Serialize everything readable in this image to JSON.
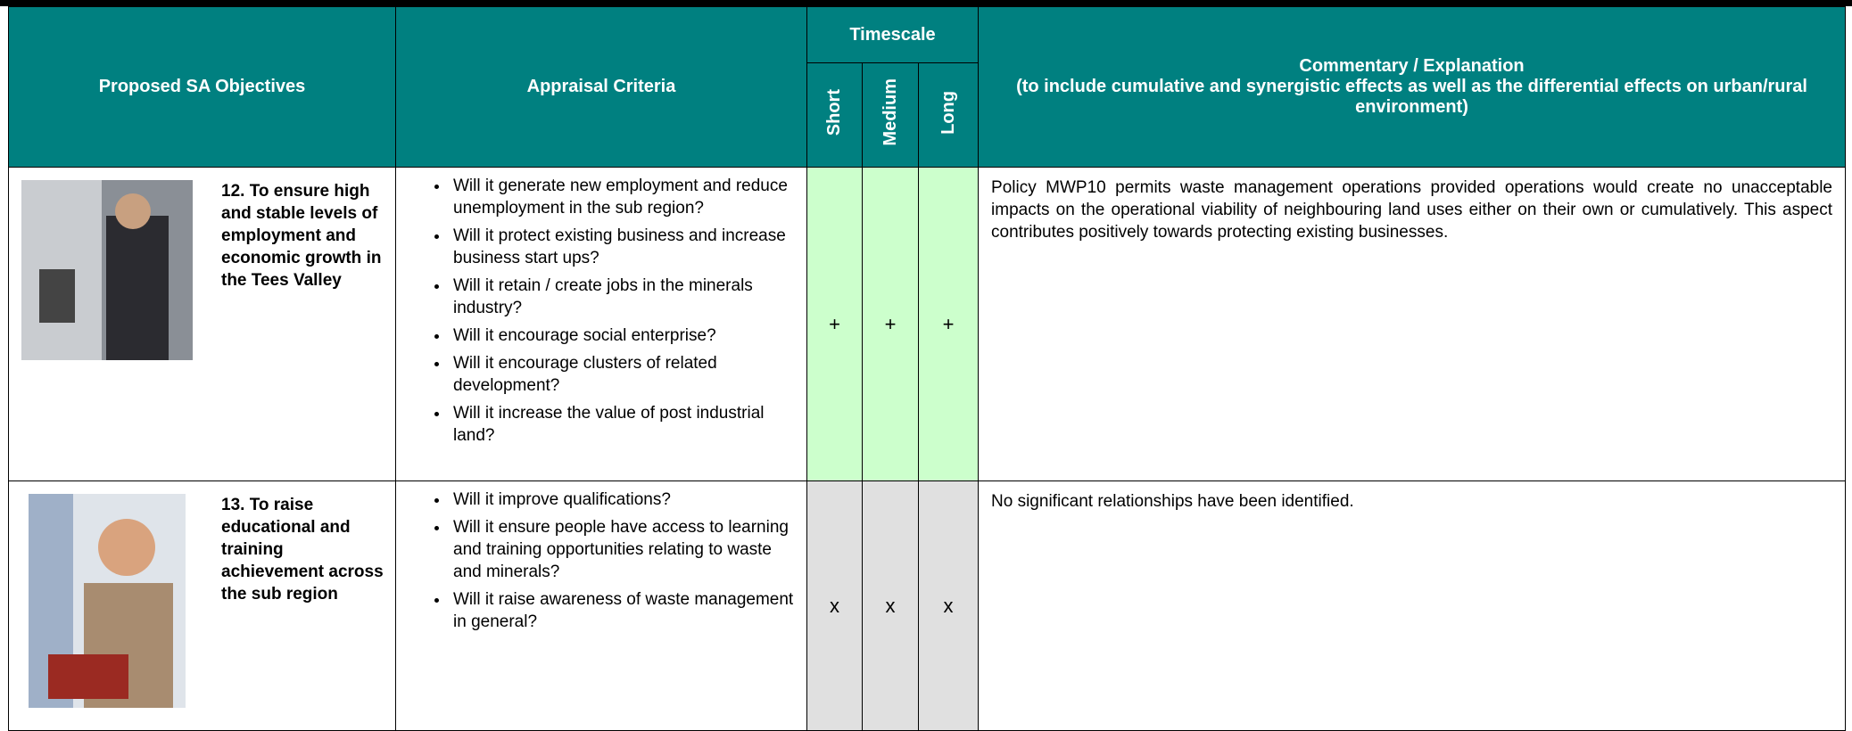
{
  "header": {
    "objectives": "Proposed SA Objectives",
    "criteria": "Appraisal Criteria",
    "timescale": "Timescale",
    "short": "Short",
    "medium": "Medium",
    "long": "Long",
    "commentary_title": "Commentary / Explanation",
    "commentary_note": "(to include cumulative and synergistic effects as well as the differential effects on urban/rural environment)"
  },
  "rows": [
    {
      "objective": "12. To ensure high and stable levels of employment and economic growth in the Tees Valley",
      "criteria": [
        "Will it generate new employment and reduce unemployment in the sub region?",
        "Will it protect existing business and increase business start ups?",
        "Will it retain / create jobs in the minerals industry?",
        "Will it encourage social enterprise?",
        "Will it encourage clusters of related development?",
        "Will it increase the value of post industrial land?"
      ],
      "scores": [
        "+",
        "+",
        "+"
      ],
      "commentary": "Policy MWP10 permits waste management operations provided operations would create no unacceptable impacts on the operational viability of neighbouring land uses either on their own or cumulatively. This aspect contributes positively towards protecting existing businesses."
    },
    {
      "objective": "13. To raise educational and training achievement across the sub region",
      "criteria": [
        "Will it improve qualifications?",
        "Will it ensure people have access to learning and training opportunities relating to waste and minerals?",
        "Will it raise awareness of waste management in general?"
      ],
      "scores": [
        "x",
        "x",
        "x"
      ],
      "commentary": "No significant relationships have been identified."
    }
  ]
}
